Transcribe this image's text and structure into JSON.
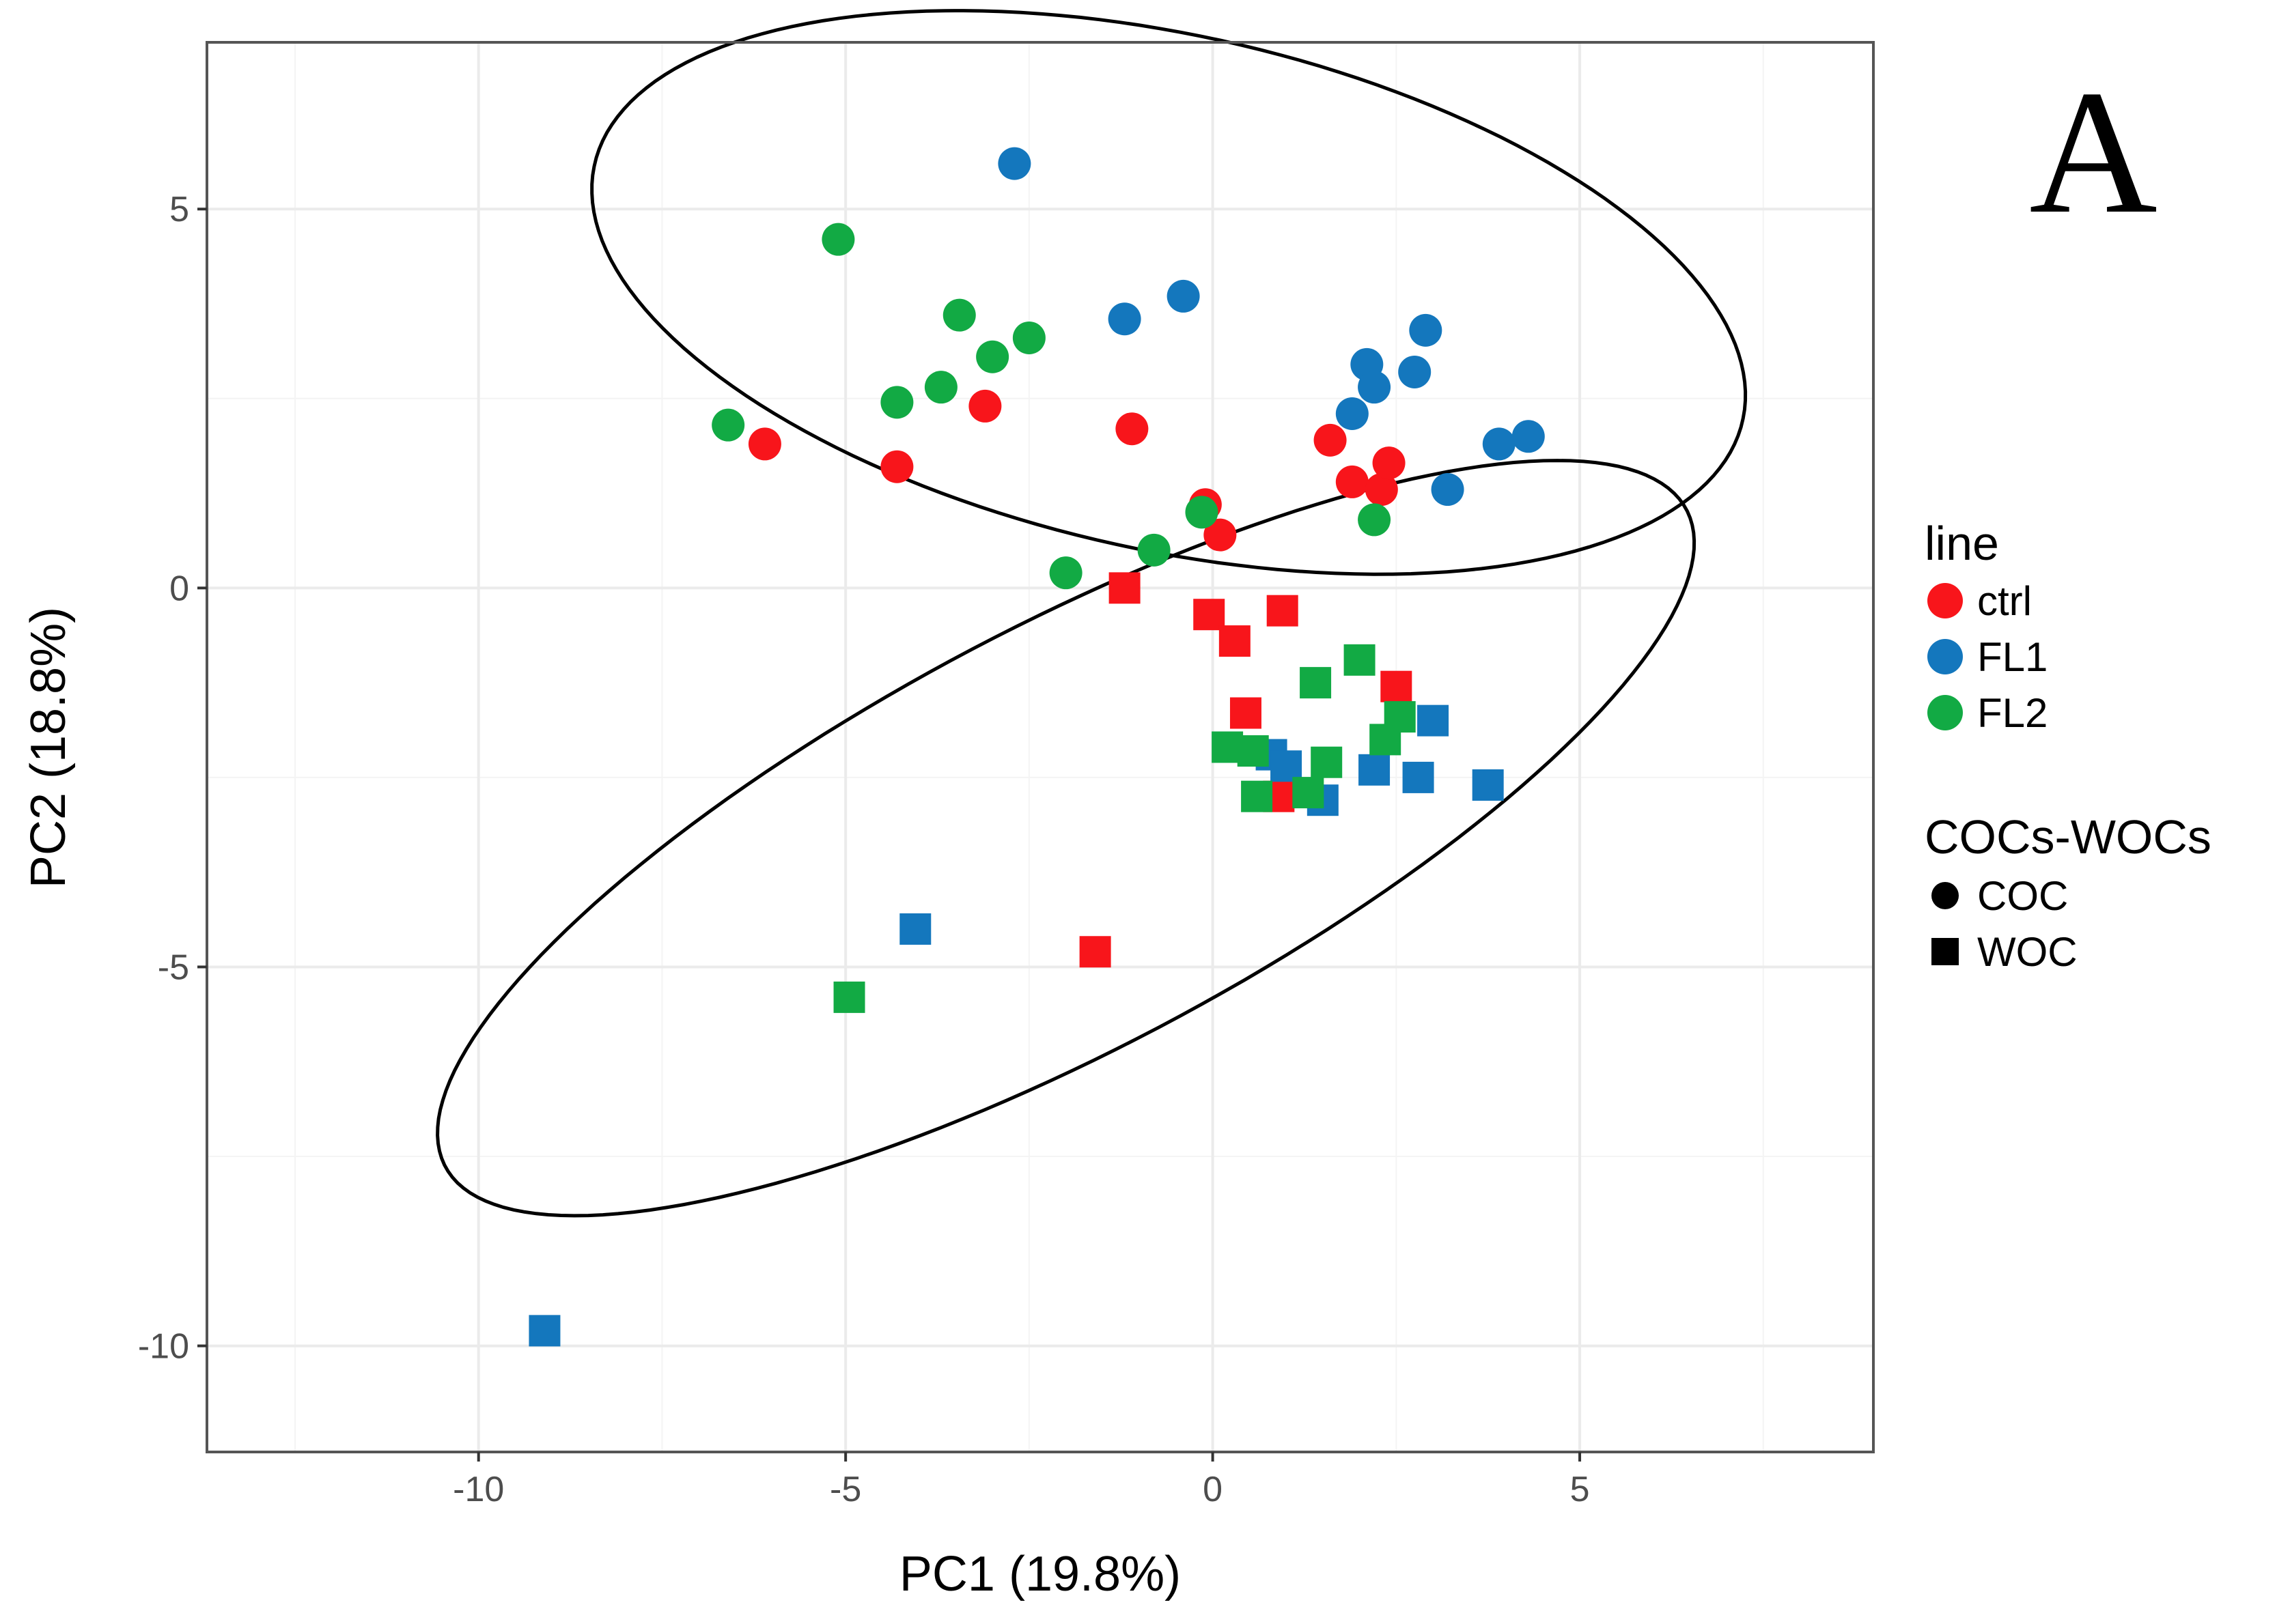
{
  "panel_label": "A",
  "colors": {
    "ctrl": "#f8151b",
    "FL1": "#1477bd",
    "FL2": "#12aa44",
    "grid_major": "#ebebeb",
    "grid_minor": "#f4f4f4",
    "panel_border": "#555555",
    "ellipse": "#000000"
  },
  "chart_data": {
    "type": "scatter",
    "xlabel": "PC1 (19.8%)",
    "ylabel": "PC2 (18.8%)",
    "xlim": [
      -13.7,
      9.0
    ],
    "ylim": [
      -11.4,
      7.2
    ],
    "x_ticks": [
      -10,
      -5,
      0,
      5
    ],
    "x_tick_labels": [
      "-10",
      "-5",
      "0",
      "5"
    ],
    "y_ticks": [
      -10,
      -5,
      0,
      5
    ],
    "y_tick_labels": [
      "-10",
      "-5",
      "0",
      "5"
    ],
    "legend": {
      "color_title": "line",
      "color_entries": [
        {
          "key": "ctrl",
          "label": "ctrl"
        },
        {
          "key": "FL1",
          "label": "FL1"
        },
        {
          "key": "FL2",
          "label": "FL2"
        }
      ],
      "shape_title": "COCs-WOCs",
      "shape_entries": [
        {
          "key": "COC",
          "label": "COC",
          "shape": "circle"
        },
        {
          "key": "WOC",
          "label": "WOC",
          "shape": "square"
        }
      ]
    },
    "ellipses": [
      {
        "group": "COC",
        "center": [
          -0.6,
          3.9
        ],
        "semi_major": 8.0,
        "semi_minor": 3.4,
        "angle_deg": -12
      },
      {
        "group": "WOC",
        "center": [
          -2.0,
          -3.3
        ],
        "semi_major": 9.5,
        "semi_minor": 2.8,
        "angle_deg": 27
      }
    ],
    "points": [
      {
        "line": "ctrl",
        "shape": "COC",
        "x": -6.1,
        "y": 1.9
      },
      {
        "line": "ctrl",
        "shape": "COC",
        "x": -4.3,
        "y": 1.6
      },
      {
        "line": "ctrl",
        "shape": "COC",
        "x": -3.1,
        "y": 2.4
      },
      {
        "line": "ctrl",
        "shape": "COC",
        "x": -1.1,
        "y": 2.1
      },
      {
        "line": "ctrl",
        "shape": "COC",
        "x": -0.1,
        "y": 1.1
      },
      {
        "line": "ctrl",
        "shape": "COC",
        "x": 0.1,
        "y": 0.7
      },
      {
        "line": "ctrl",
        "shape": "COC",
        "x": 1.6,
        "y": 1.95
      },
      {
        "line": "ctrl",
        "shape": "COC",
        "x": 1.9,
        "y": 1.4
      },
      {
        "line": "ctrl",
        "shape": "COC",
        "x": 2.3,
        "y": 1.3
      },
      {
        "line": "ctrl",
        "shape": "COC",
        "x": 2.4,
        "y": 1.65
      },
      {
        "line": "FL1",
        "shape": "COC",
        "x": -2.7,
        "y": 5.6
      },
      {
        "line": "FL1",
        "shape": "COC",
        "x": -1.2,
        "y": 3.55
      },
      {
        "line": "FL1",
        "shape": "COC",
        "x": -0.4,
        "y": 3.85
      },
      {
        "line": "FL1",
        "shape": "COC",
        "x": 1.9,
        "y": 2.3
      },
      {
        "line": "FL1",
        "shape": "COC",
        "x": 2.1,
        "y": 2.95
      },
      {
        "line": "FL1",
        "shape": "COC",
        "x": 2.2,
        "y": 2.65
      },
      {
        "line": "FL1",
        "shape": "COC",
        "x": 2.75,
        "y": 2.85
      },
      {
        "line": "FL1",
        "shape": "COC",
        "x": 2.9,
        "y": 3.4
      },
      {
        "line": "FL1",
        "shape": "COC",
        "x": 3.2,
        "y": 1.3
      },
      {
        "line": "FL1",
        "shape": "COC",
        "x": 3.9,
        "y": 1.9
      },
      {
        "line": "FL1",
        "shape": "COC",
        "x": 4.3,
        "y": 2.0
      },
      {
        "line": "FL2",
        "shape": "COC",
        "x": -6.6,
        "y": 2.15
      },
      {
        "line": "FL2",
        "shape": "COC",
        "x": -5.1,
        "y": 4.6
      },
      {
        "line": "FL2",
        "shape": "COC",
        "x": -4.3,
        "y": 2.45
      },
      {
        "line": "FL2",
        "shape": "COC",
        "x": -3.7,
        "y": 2.65
      },
      {
        "line": "FL2",
        "shape": "COC",
        "x": -3.45,
        "y": 3.6
      },
      {
        "line": "FL2",
        "shape": "COC",
        "x": -3.0,
        "y": 3.05
      },
      {
        "line": "FL2",
        "shape": "COC",
        "x": -2.5,
        "y": 3.3
      },
      {
        "line": "FL2",
        "shape": "COC",
        "x": -2.0,
        "y": 0.2
      },
      {
        "line": "FL2",
        "shape": "COC",
        "x": -0.8,
        "y": 0.5
      },
      {
        "line": "FL2",
        "shape": "COC",
        "x": -0.15,
        "y": 1.0
      },
      {
        "line": "FL2",
        "shape": "COC",
        "x": 2.2,
        "y": 0.9
      },
      {
        "line": "ctrl",
        "shape": "WOC",
        "x": -1.2,
        "y": 0.0
      },
      {
        "line": "ctrl",
        "shape": "WOC",
        "x": -0.05,
        "y": -0.35
      },
      {
        "line": "ctrl",
        "shape": "WOC",
        "x": 0.3,
        "y": -0.7
      },
      {
        "line": "ctrl",
        "shape": "WOC",
        "x": 0.95,
        "y": -0.3
      },
      {
        "line": "ctrl",
        "shape": "WOC",
        "x": 2.5,
        "y": -1.3
      },
      {
        "line": "ctrl",
        "shape": "WOC",
        "x": 0.45,
        "y": -1.65
      },
      {
        "line": "ctrl",
        "shape": "WOC",
        "x": 0.9,
        "y": -2.75
      },
      {
        "line": "ctrl",
        "shape": "WOC",
        "x": -1.6,
        "y": -4.8
      },
      {
        "line": "FL1",
        "shape": "WOC",
        "x": -9.1,
        "y": -9.8
      },
      {
        "line": "FL1",
        "shape": "WOC",
        "x": -4.05,
        "y": -4.5
      },
      {
        "line": "FL1",
        "shape": "WOC",
        "x": 0.8,
        "y": -2.2
      },
      {
        "line": "FL1",
        "shape": "WOC",
        "x": 1.0,
        "y": -2.35
      },
      {
        "line": "FL1",
        "shape": "WOC",
        "x": 1.5,
        "y": -2.8
      },
      {
        "line": "FL1",
        "shape": "WOC",
        "x": 2.2,
        "y": -2.4
      },
      {
        "line": "FL1",
        "shape": "WOC",
        "x": 2.8,
        "y": -2.5
      },
      {
        "line": "FL1",
        "shape": "WOC",
        "x": 3.0,
        "y": -1.75
      },
      {
        "line": "FL1",
        "shape": "WOC",
        "x": 3.75,
        "y": -2.6
      },
      {
        "line": "FL2",
        "shape": "WOC",
        "x": -4.95,
        "y": -5.4
      },
      {
        "line": "FL2",
        "shape": "WOC",
        "x": 0.2,
        "y": -2.1
      },
      {
        "line": "FL2",
        "shape": "WOC",
        "x": 0.55,
        "y": -2.15
      },
      {
        "line": "FL2",
        "shape": "WOC",
        "x": 0.6,
        "y": -2.75
      },
      {
        "line": "FL2",
        "shape": "WOC",
        "x": 1.3,
        "y": -2.7
      },
      {
        "line": "FL2",
        "shape": "WOC",
        "x": 1.55,
        "y": -2.3
      },
      {
        "line": "FL2",
        "shape": "WOC",
        "x": 1.4,
        "y": -1.25
      },
      {
        "line": "FL2",
        "shape": "WOC",
        "x": 2.0,
        "y": -0.95
      },
      {
        "line": "FL2",
        "shape": "WOC",
        "x": 2.35,
        "y": -2.0
      },
      {
        "line": "FL2",
        "shape": "WOC",
        "x": 2.55,
        "y": -1.7
      }
    ]
  }
}
